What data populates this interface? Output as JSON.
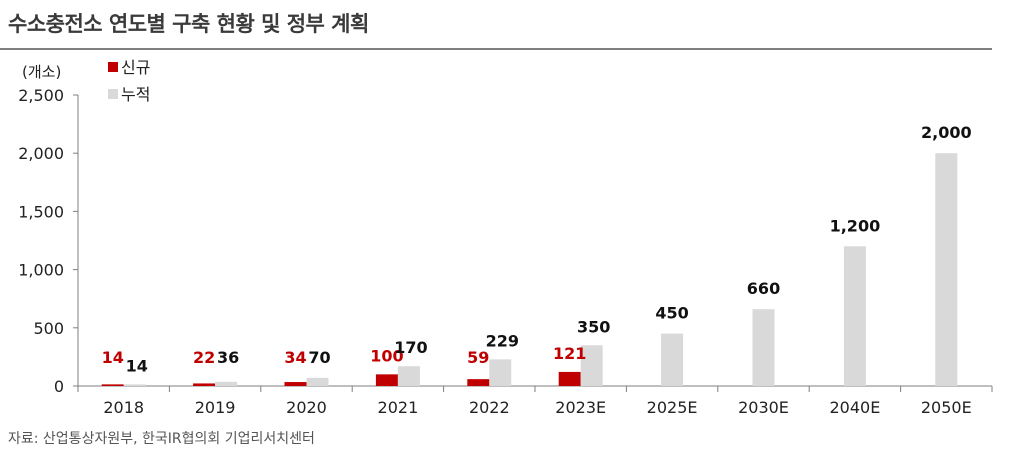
{
  "title": "수소충전소 연도별 구축 현황 및 정부 계획",
  "source": "자료: 산업통상자원부, 한국IR협의회 기업리서치센터",
  "colors": {
    "new": "#C00000",
    "cumulative": "#D9D9D9",
    "axis": "#7F7F7F"
  },
  "chart_data": {
    "type": "bar",
    "title": "수소충전소 연도별 구축 현황 및 정부 계획",
    "ylabel": "(개소)",
    "ylim": [
      0,
      2500
    ],
    "yticks": [
      "0",
      "500",
      "1,000",
      "1,500",
      "2,000",
      "2,500"
    ],
    "grid": false,
    "legend_position": "top-left",
    "categories": [
      "2018",
      "2019",
      "2020",
      "2021",
      "2022",
      "2023E",
      "2025E",
      "2030E",
      "2040E",
      "2050E"
    ],
    "series": [
      {
        "name": "신규",
        "values": [
          14,
          22,
          34,
          100,
          59,
          121,
          null,
          null,
          null,
          null
        ],
        "labels": [
          "14",
          "22",
          "34",
          "100",
          "59",
          "121",
          "",
          "",
          "",
          ""
        ]
      },
      {
        "name": "누적",
        "values": [
          14,
          36,
          70,
          170,
          229,
          350,
          450,
          660,
          1200,
          2000
        ],
        "labels": [
          "14",
          "36",
          "70",
          "170",
          "229",
          "350",
          "450",
          "660",
          "1,200",
          "2,000"
        ]
      }
    ]
  }
}
